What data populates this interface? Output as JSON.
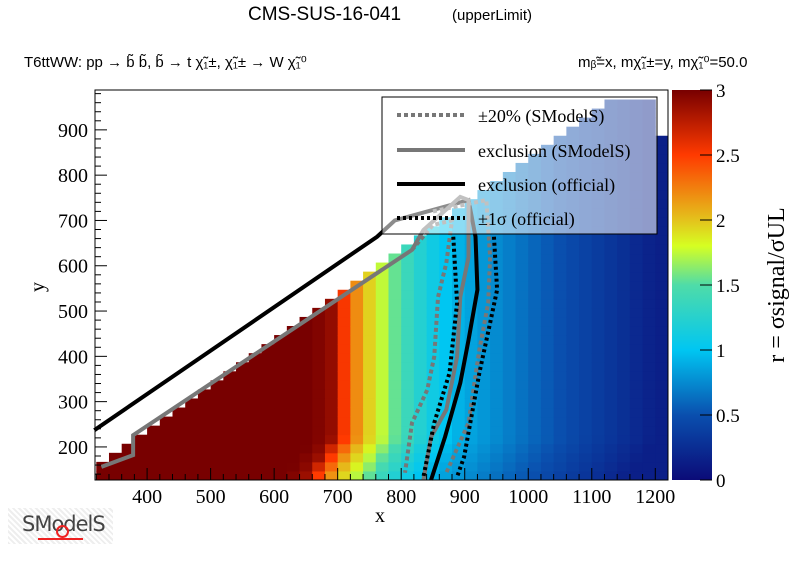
{
  "chart_data": {
    "type": "heatmap",
    "title": "CMS-SUS-16-041",
    "title_tag": "(upperLimit)",
    "process_label": "T6ttWW: pp → b̃ b̃, b̃ → t χ̃₁±, χ̃₁± → W χ̃₁⁰",
    "mass_label": "mᵦ̃=x, mχ̃₁±=y, mχ̃₁⁰=50.0",
    "xlabel": "x",
    "ylabel": "y",
    "zlabel": "r = σsignal/σUL",
    "xlim": [
      318,
      1220
    ],
    "ylim": [
      127,
      988
    ],
    "zlim": [
      0,
      3
    ],
    "xticks": [
      "400",
      "500",
      "600",
      "700",
      "800",
      "900",
      "1000",
      "1100",
      "1200"
    ],
    "yticks": [
      "200",
      "300",
      "400",
      "500",
      "600",
      "700",
      "800",
      "900"
    ],
    "zticks": [
      "0",
      "0.5",
      "1",
      "1.5",
      "2",
      "2.5",
      "3"
    ],
    "r_profile_x": [
      660,
      690,
      700,
      720,
      740,
      760,
      780,
      800,
      820,
      840,
      860,
      880,
      900,
      950,
      1000,
      1050,
      1100,
      1150,
      1200
    ],
    "r_profile_r": [
      3,
      2.9,
      2.7,
      2.35,
      2.05,
      1.85,
      1.65,
      1.45,
      1.3,
      1.15,
      1.05,
      0.95,
      0.88,
      0.75,
      0.62,
      0.5,
      0.38,
      0.27,
      0.15
    ],
    "colormap": [
      [
        0,
        "#0b0b78"
      ],
      [
        0.5,
        "#0a4fae"
      ],
      [
        1,
        "#00c6f2"
      ],
      [
        1.5,
        "#4fdca8"
      ],
      [
        1.8,
        "#d6ff22"
      ],
      [
        2,
        "#e4c21c"
      ],
      [
        2.5,
        "#ff3a00"
      ],
      [
        3,
        "#780000"
      ]
    ],
    "legend": [
      {
        "label": "±20% (SModelS)",
        "style": "gray-dotted"
      },
      {
        "label": "exclusion (SModelS)",
        "style": "gray-solid"
      },
      {
        "label": "exclusion (official)",
        "style": "black-solid"
      },
      {
        "label": "±1σ (official)",
        "style": "black-dotted"
      }
    ],
    "contours": {
      "exclusion_official": [
        [
          317,
          237
        ],
        [
          762,
          664
        ],
        [
          790,
          700
        ],
        [
          906,
          745
        ],
        [
          917,
          664
        ],
        [
          920,
          547
        ],
        [
          906,
          436
        ],
        [
          893,
          341
        ],
        [
          869,
          222
        ],
        [
          847,
          127
        ]
      ],
      "exclusion_smodels": [
        [
          328,
          156
        ],
        [
          378,
          182
        ],
        [
          378,
          226
        ],
        [
          817,
          635
        ],
        [
          835,
          679
        ],
        [
          893,
          752
        ],
        [
          906,
          745
        ],
        [
          906,
          619
        ],
        [
          893,
          531
        ],
        [
          888,
          399
        ],
        [
          871,
          282
        ],
        [
          847,
          222
        ],
        [
          835,
          127
        ]
      ],
      "smodels_minus20": [
        [
          817,
          635
        ],
        [
          850,
          690
        ],
        [
          880,
          700
        ],
        [
          871,
          606
        ],
        [
          858,
          531
        ],
        [
          852,
          399
        ],
        [
          841,
          326
        ],
        [
          817,
          253
        ],
        [
          806,
          143
        ]
      ],
      "smodels_plus20": [
        [
          850,
          720
        ],
        [
          934,
          745
        ],
        [
          940,
          619
        ],
        [
          937,
          518
        ],
        [
          923,
          414
        ],
        [
          906,
          253
        ],
        [
          871,
          143
        ]
      ],
      "official_minus1s": [
        [
          882,
          664
        ],
        [
          888,
          518
        ],
        [
          876,
          363
        ],
        [
          852,
          253
        ],
        [
          835,
          134
        ]
      ],
      "official_plus1s": [
        [
          946,
          664
        ],
        [
          951,
          547
        ],
        [
          940,
          474
        ],
        [
          923,
          363
        ],
        [
          899,
          178
        ],
        [
          888,
          134
        ]
      ]
    }
  },
  "logo": {
    "text": "SModelS"
  }
}
